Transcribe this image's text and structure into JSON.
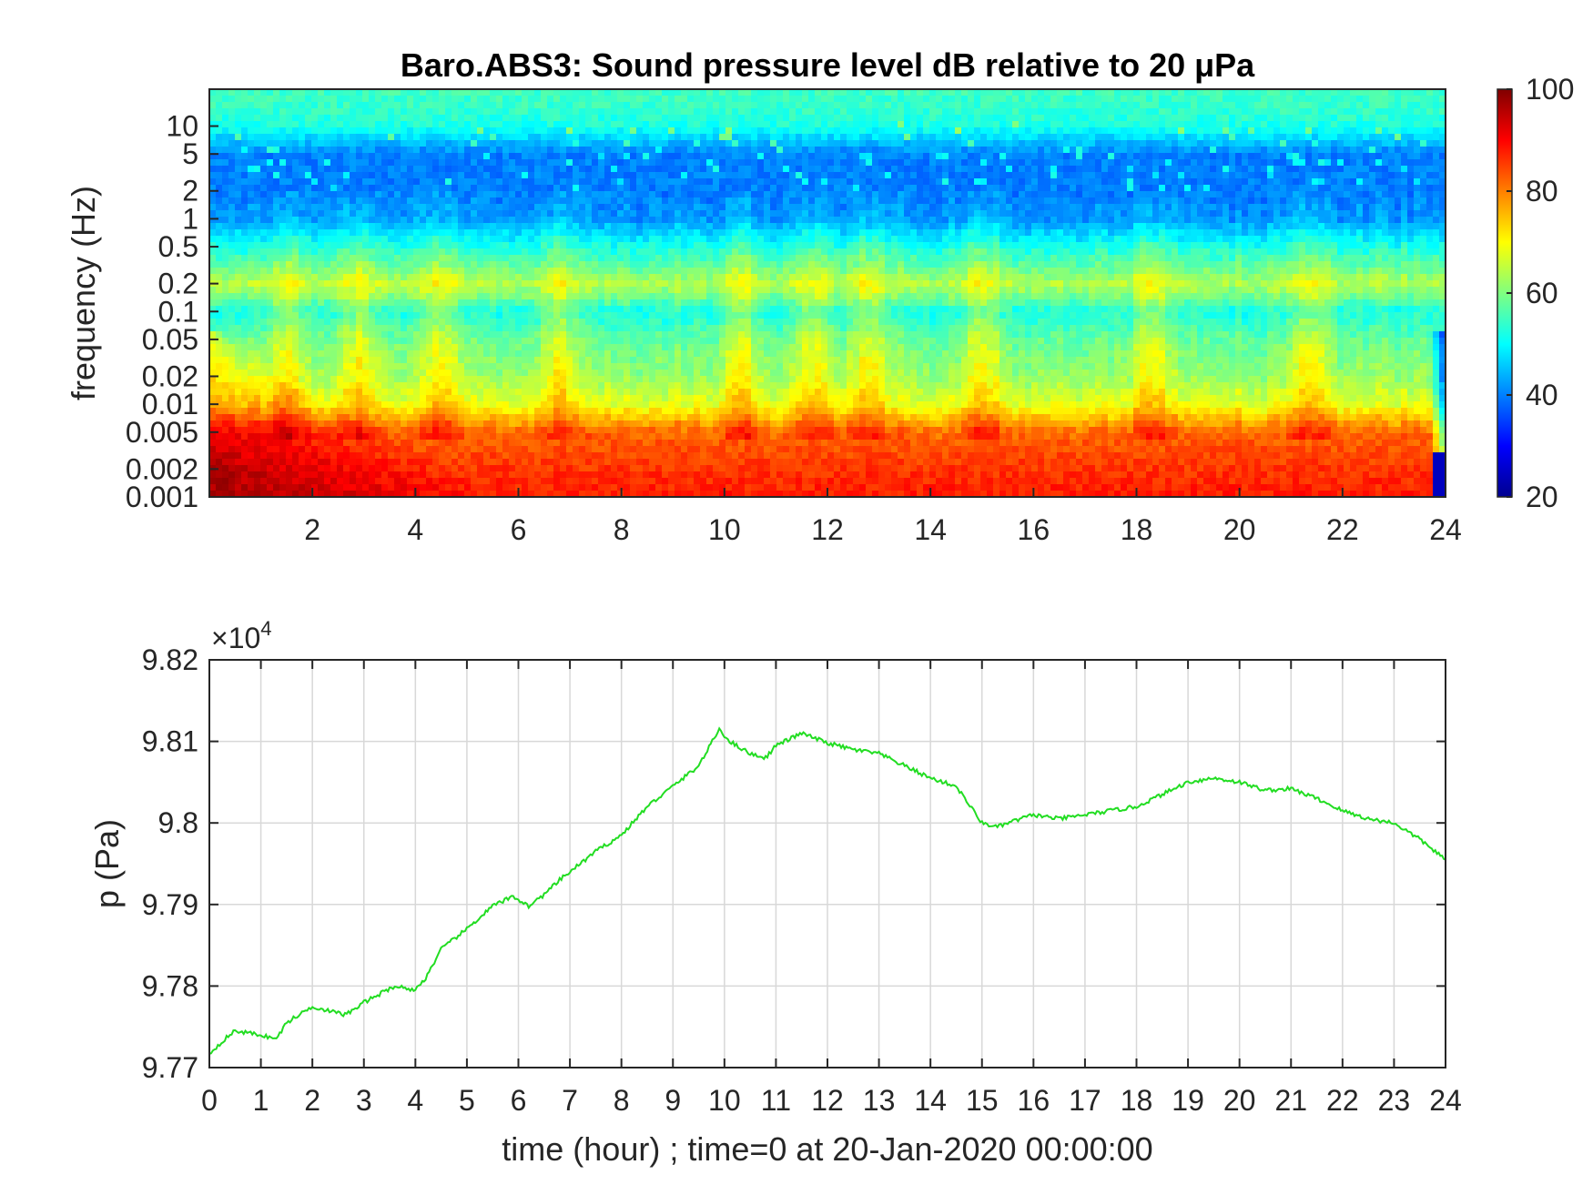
{
  "chart_data": [
    {
      "type": "heatmap",
      "title": "Baro.ABS3: Sound pressure level dB relative to 20 μPa",
      "ylabel": "frequency (Hz)",
      "xlabel": "",
      "xlim": [
        0,
        24
      ],
      "ylim": [
        0.001,
        25
      ],
      "yscale": "log",
      "x_ticks": [
        "2",
        "4",
        "6",
        "8",
        "10",
        "12",
        "14",
        "16",
        "18",
        "20",
        "22",
        "24"
      ],
      "y_ticks": [
        "0.001",
        "0.002",
        "0.005",
        "0.01",
        "0.02",
        "0.05",
        "0.1",
        "0.2",
        "0.5",
        "1",
        "2",
        "5",
        "10"
      ],
      "colorbar": {
        "range": [
          20,
          100
        ],
        "ticks": [
          "20",
          "40",
          "60",
          "80",
          "100"
        ],
        "colormap": "jet"
      },
      "level_profile": {
        "freq_hz": [
          0.001,
          0.002,
          0.005,
          0.01,
          0.02,
          0.05,
          0.1,
          0.15,
          0.2,
          0.3,
          0.5,
          1,
          2,
          5,
          10,
          15,
          25
        ],
        "db": [
          88,
          86,
          82,
          68,
          62,
          58,
          52,
          60,
          64,
          58,
          52,
          42,
          40,
          40,
          52,
          54,
          55
        ]
      },
      "events_hours": [
        1.5,
        2.9,
        4.5,
        6.8,
        10.3,
        11.7,
        12.8,
        15.0,
        18.3,
        21.4
      ]
    },
    {
      "type": "line",
      "title": "",
      "xlabel": "time (hour) ; time=0 at 20-Jan-2020 00:00:00",
      "ylabel": "p (Pa)",
      "y_multiplier": "×10",
      "y_multiplier_exp": "4",
      "xlim": [
        0,
        24
      ],
      "ylim": [
        9.77,
        9.82
      ],
      "grid": true,
      "x_ticks": [
        "0",
        "1",
        "2",
        "3",
        "4",
        "5",
        "6",
        "7",
        "8",
        "9",
        "10",
        "11",
        "12",
        "13",
        "14",
        "15",
        "16",
        "17",
        "18",
        "19",
        "20",
        "21",
        "22",
        "23",
        "24"
      ],
      "y_ticks": [
        "9.77",
        "9.78",
        "9.79",
        "9.8",
        "9.81",
        "9.82"
      ],
      "series": [
        {
          "color": "#22dd22",
          "x": [
            0,
            0.3,
            0.5,
            1,
            1.3,
            1.5,
            2,
            2.3,
            2.6,
            2.8,
            3,
            3.3,
            3.6,
            4,
            4.2,
            4.5,
            5,
            5.5,
            5.9,
            6.2,
            6.5,
            6.8,
            7,
            7.5,
            8,
            8.5,
            9,
            9.5,
            9.9,
            10.1,
            10.5,
            10.8,
            11,
            11.5,
            12,
            12.5,
            13,
            13.5,
            14,
            14.5,
            15,
            15.3,
            15.6,
            16,
            16.5,
            17,
            17.5,
            18,
            18.5,
            19,
            19.5,
            20,
            20.5,
            21,
            21.5,
            22,
            22.5,
            23,
            23.5,
            24
          ],
          "y": [
            9.7717,
            9.7735,
            9.7745,
            9.774,
            9.7735,
            9.7755,
            9.7775,
            9.777,
            9.7765,
            9.777,
            9.778,
            9.779,
            9.78,
            9.7795,
            9.781,
            9.7845,
            9.787,
            9.7898,
            9.791,
            9.7898,
            9.7912,
            9.793,
            9.794,
            9.7965,
            9.7985,
            9.802,
            9.8045,
            9.807,
            9.8115,
            9.81,
            9.8085,
            9.808,
            9.8095,
            9.811,
            9.8098,
            9.809,
            9.8085,
            9.807,
            9.8055,
            9.8045,
            9.8,
            9.7995,
            9.8002,
            9.801,
            9.8005,
            9.801,
            9.8015,
            9.802,
            9.8035,
            9.805,
            9.8055,
            9.805,
            9.804,
            9.8042,
            9.803,
            9.8015,
            9.8005,
            9.8,
            9.798,
            9.7955
          ]
        }
      ]
    }
  ]
}
